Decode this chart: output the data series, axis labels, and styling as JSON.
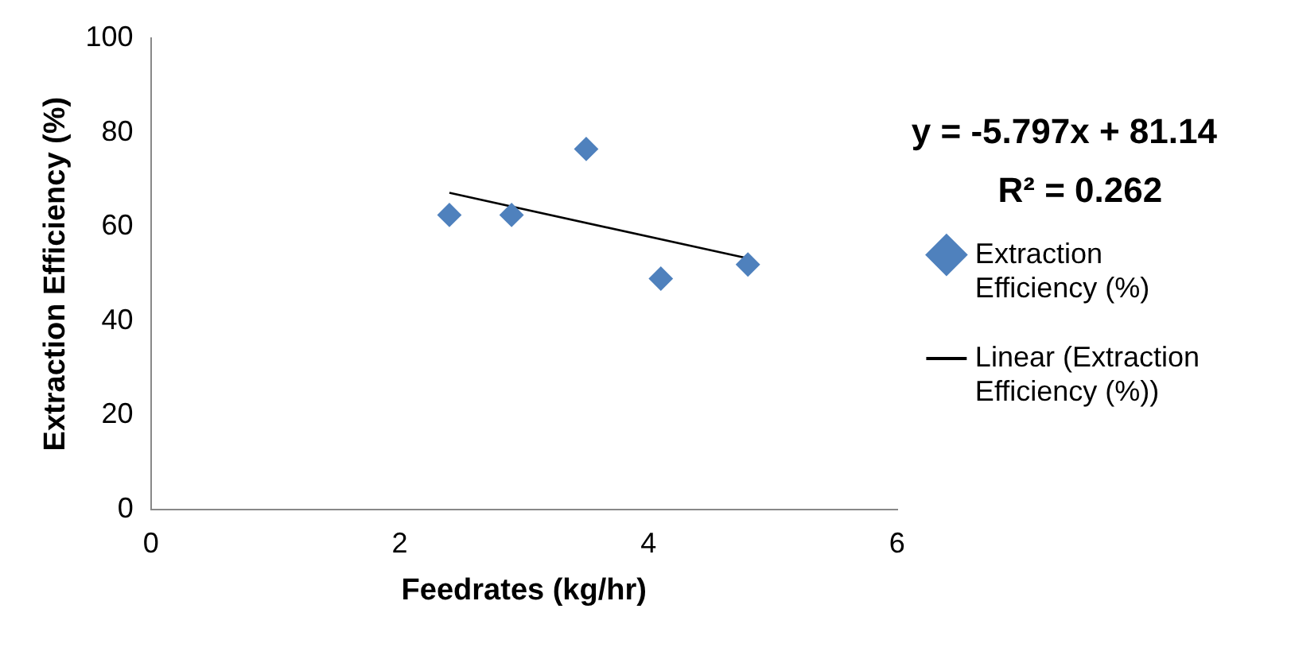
{
  "chart_data": {
    "type": "scatter",
    "xlabel": "Feedrates (kg/hr)",
    "ylabel": "Extraction Efficiency (%)",
    "series": [
      {
        "name": "Extraction Efficiency (%)",
        "color": "#4f81bd",
        "x": [
          2.4,
          2.9,
          3.5,
          4.1,
          4.8
        ],
        "values": [
          62.5,
          62.5,
          76.5,
          49,
          52
        ],
        "marker": "diamond"
      },
      {
        "name": "Linear (Extraction Efficiency (%))",
        "type": "line",
        "color": "#000000",
        "x": [
          2.4,
          4.8
        ],
        "values": [
          67.2,
          53.3
        ],
        "marker": "none",
        "line_style": "solid"
      }
    ],
    "annotations": [
      "y = -5.797x + 81.14",
      "R² = 0.262"
    ],
    "xlim": [
      0,
      6
    ],
    "xticks": [
      0,
      2,
      4,
      6
    ],
    "ylim": [
      0,
      100
    ],
    "yticks": [
      0,
      20,
      40,
      60,
      80,
      100
    ],
    "grid": false,
    "legend": "right"
  }
}
